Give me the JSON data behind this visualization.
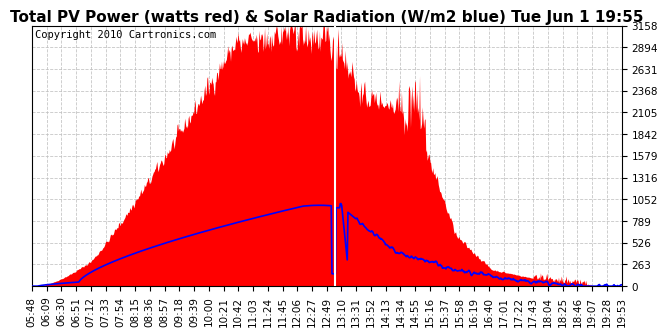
{
  "title": "Total PV Power (watts red) & Solar Radiation (W/m2 blue) Tue Jun 1 19:55",
  "copyright_text": "Copyright 2010 Cartronics.com",
  "bg_color": "#ffffff",
  "plot_bg_color": "#ffffff",
  "yticks": [
    0.0,
    263.1,
    526.3,
    789.4,
    1052.5,
    1315.6,
    1578.8,
    1841.9,
    2105.0,
    2368.1,
    2631.3,
    2894.4,
    3157.5
  ],
  "ylim": [
    0,
    3157.5
  ],
  "x_labels": [
    "05:48",
    "06:09",
    "06:30",
    "06:51",
    "07:12",
    "07:33",
    "07:54",
    "08:15",
    "08:36",
    "08:57",
    "09:18",
    "09:39",
    "10:00",
    "10:21",
    "10:42",
    "11:03",
    "11:24",
    "11:45",
    "12:06",
    "12:27",
    "12:49",
    "13:10",
    "13:31",
    "13:52",
    "14:13",
    "14:34",
    "14:55",
    "15:16",
    "15:37",
    "15:58",
    "16:19",
    "16:40",
    "17:01",
    "17:22",
    "17:43",
    "18:04",
    "18:25",
    "18:46",
    "19:07",
    "19:28",
    "19:53"
  ],
  "pv_color": "#ff0000",
  "solar_color": "#0000ff",
  "vline_color": "#ffffff",
  "grid_color": "#c0c0c0",
  "title_fontsize": 11,
  "copyright_fontsize": 7.5,
  "tick_fontsize": 7.5
}
